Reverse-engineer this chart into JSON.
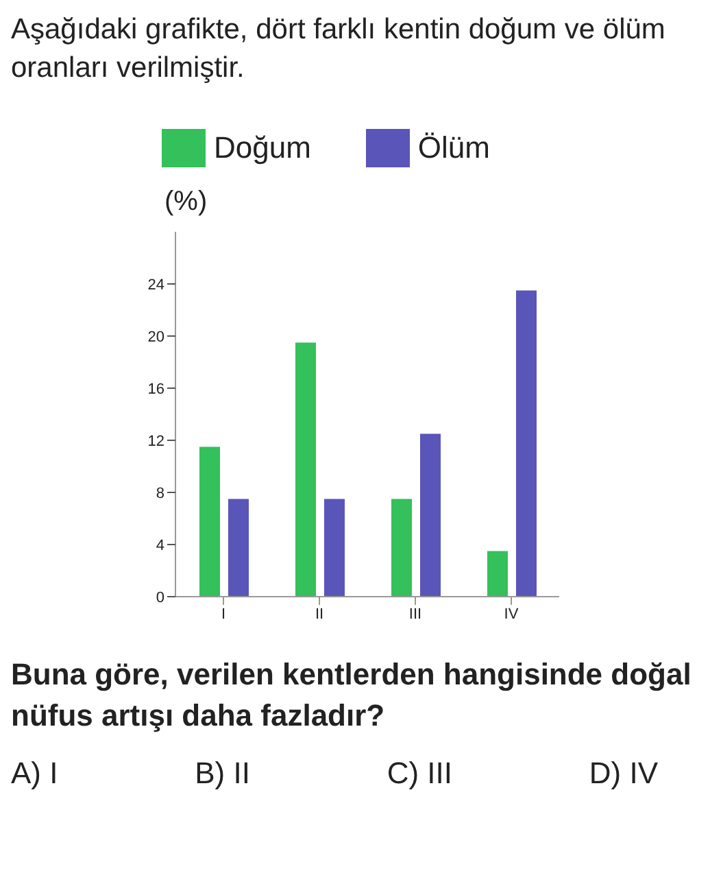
{
  "chart_data": {
    "type": "bar",
    "title": "Aşağıdaki grafikte, dört farklı kentin doğum ve ölüm oranları verilmiştir.",
    "ylabel": "(%)",
    "categories": [
      "I",
      "II",
      "III",
      "IV"
    ],
    "series": [
      {
        "name": "Doğum",
        "color": "#34c05a",
        "values": [
          11.5,
          19.5,
          7.5,
          3.5
        ]
      },
      {
        "name": "Ölüm",
        "color": "#5a55b8",
        "values": [
          7.5,
          7.5,
          12.5,
          23.5
        ]
      }
    ],
    "ylim": [
      0,
      28
    ],
    "yticks": [
      0,
      4,
      8,
      12,
      16,
      20,
      24
    ],
    "grid": false,
    "legend": "top left",
    "annotations": [
      "Buna göre, verilen kentlerden hangisinde doğal nüfus artışı daha fazladır?",
      "A) I",
      "B) II",
      "C) III",
      "D) IV"
    ]
  }
}
